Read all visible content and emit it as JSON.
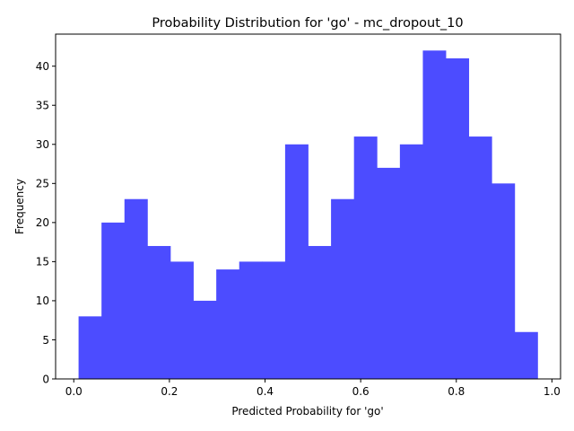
{
  "chart_data": {
    "type": "bar",
    "title": "Probability Distribution for 'go' - mc_dropout_10",
    "xlabel": "Predicted Probability for 'go'",
    "ylabel": "Frequency",
    "bar_color": "#4c4cff",
    "bins": [
      {
        "x0": 0.01,
        "x1": 0.058,
        "value": 8
      },
      {
        "x0": 0.058,
        "x1": 0.106,
        "value": 20
      },
      {
        "x0": 0.106,
        "x1": 0.154,
        "value": 23
      },
      {
        "x0": 0.154,
        "x1": 0.202,
        "value": 17
      },
      {
        "x0": 0.202,
        "x1": 0.25,
        "value": 15
      },
      {
        "x0": 0.25,
        "x1": 0.298,
        "value": 10
      },
      {
        "x0": 0.298,
        "x1": 0.346,
        "value": 14
      },
      {
        "x0": 0.346,
        "x1": 0.394,
        "value": 15
      },
      {
        "x0": 0.394,
        "x1": 0.442,
        "value": 15
      },
      {
        "x0": 0.442,
        "x1": 0.49,
        "value": 30
      },
      {
        "x0": 0.49,
        "x1": 0.538,
        "value": 17
      },
      {
        "x0": 0.538,
        "x1": 0.586,
        "value": 23
      },
      {
        "x0": 0.586,
        "x1": 0.634,
        "value": 31
      },
      {
        "x0": 0.634,
        "x1": 0.682,
        "value": 27
      },
      {
        "x0": 0.682,
        "x1": 0.73,
        "value": 30
      },
      {
        "x0": 0.73,
        "x1": 0.778,
        "value": 42
      },
      {
        "x0": 0.778,
        "x1": 0.826,
        "value": 41
      },
      {
        "x0": 0.826,
        "x1": 0.874,
        "value": 31
      },
      {
        "x0": 0.874,
        "x1": 0.922,
        "value": 25
      },
      {
        "x0": 0.922,
        "x1": 0.97,
        "value": 6
      }
    ],
    "xlim": [
      -0.038,
      1.018
    ],
    "ylim": [
      0,
      44.1
    ],
    "xticks": [
      0.0,
      0.2,
      0.4,
      0.6,
      0.8,
      1.0
    ],
    "xtick_labels": [
      "0.0",
      "0.2",
      "0.4",
      "0.6",
      "0.8",
      "1.0"
    ],
    "yticks": [
      0,
      5,
      10,
      15,
      20,
      25,
      30,
      35,
      40
    ],
    "ytick_labels": [
      "0",
      "5",
      "10",
      "15",
      "20",
      "25",
      "30",
      "35",
      "40"
    ],
    "grid": false,
    "legend": "none"
  }
}
